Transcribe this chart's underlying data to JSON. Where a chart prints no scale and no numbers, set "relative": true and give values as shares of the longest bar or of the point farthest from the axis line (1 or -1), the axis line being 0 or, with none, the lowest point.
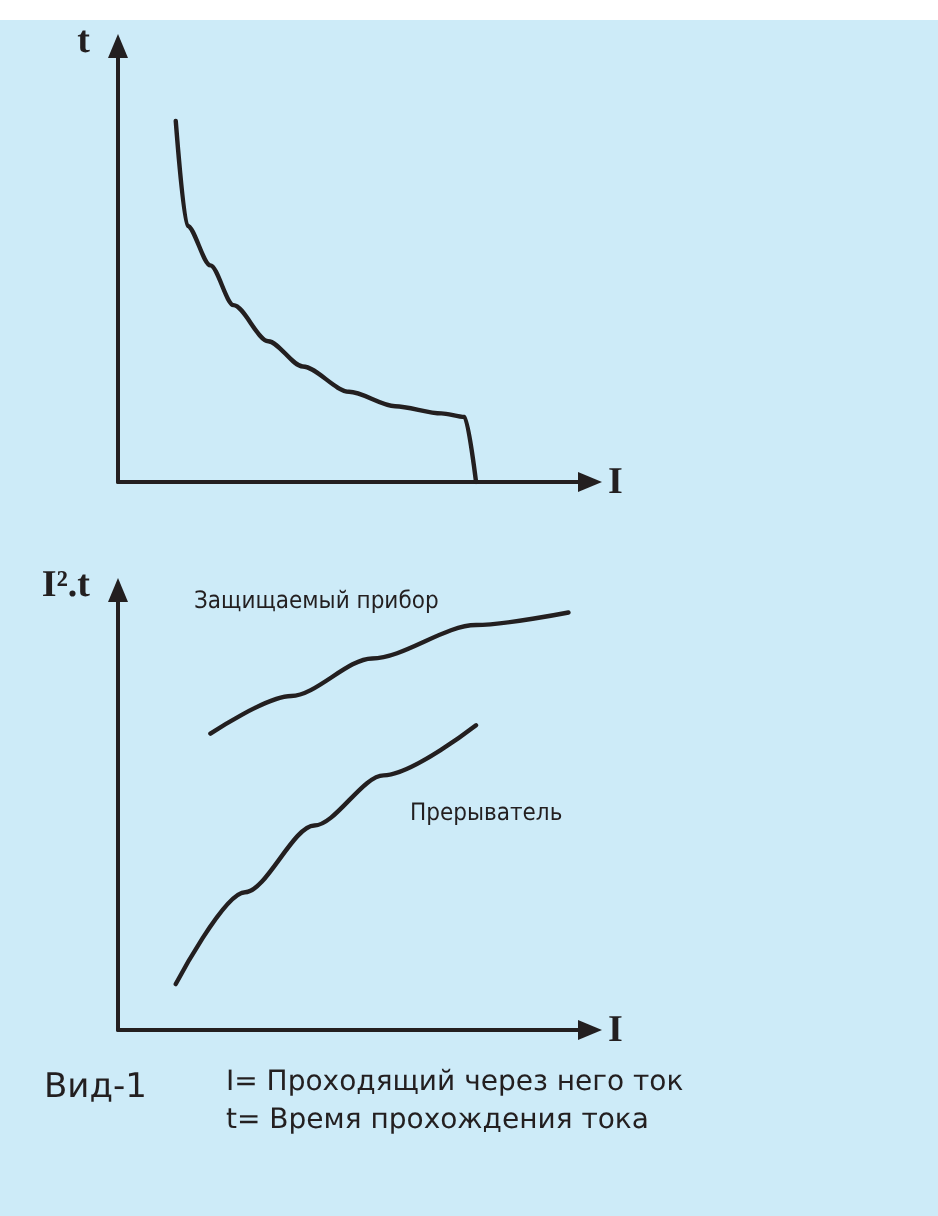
{
  "chart_data": [
    {
      "type": "line",
      "relative": true,
      "ylabel": "t",
      "xlabel": "I",
      "legend": false,
      "grid": false,
      "marker": "none",
      "line_style": "solid",
      "categories": [
        null,
        null,
        null,
        null,
        null,
        null,
        null,
        null,
        null,
        null,
        null,
        null,
        null,
        null,
        null,
        null,
        null,
        null,
        null,
        null,
        null,
        null,
        null,
        null,
        null,
        null,
        null,
        null,
        null,
        null,
        null,
        null,
        null,
        null,
        null,
        null,
        null,
        null,
        null,
        null,
        null
      ],
      "series": [
        {
          "color": "#231f20",
          "values": [
            null,
            null,
            null,
            null,
            null,
            1.0,
            0.71,
            null,
            0.6,
            null,
            0.49,
            null,
            null,
            0.39,
            null,
            null,
            0.32,
            null,
            null,
            null,
            0.25,
            null,
            null,
            null,
            0.21,
            null,
            null,
            null,
            0.19,
            null,
            0.18,
            0,
            null,
            null,
            null,
            null,
            null,
            null,
            null,
            null,
            null
          ]
        }
      ]
    },
    {
      "type": "line",
      "relative": true,
      "ylabel": "I².t",
      "xlabel": "I",
      "legend": false,
      "grid": false,
      "marker": "none",
      "line_style": "solid",
      "annotations": [
        "Вид-1",
        "I= Проходящий через него ток",
        "t= Время прохождения тока"
      ],
      "categories": [
        null,
        null,
        null,
        null,
        null,
        null,
        null,
        null,
        null,
        null,
        null,
        null,
        null,
        null,
        null,
        null,
        null,
        null,
        null,
        null,
        null,
        null,
        null,
        null,
        null,
        null,
        null,
        null,
        null,
        null,
        null,
        null,
        null,
        null,
        null,
        null,
        null,
        null,
        null,
        null,
        null
      ],
      "series": [
        {
          "name": "Защищаемый прибор",
          "color": "#231f20",
          "values": [
            null,
            null,
            null,
            null,
            null,
            null,
            null,
            null,
            0.71,
            null,
            null,
            null,
            null,
            null,
            null,
            0.8,
            null,
            null,
            null,
            null,
            null,
            null,
            0.89,
            null,
            null,
            null,
            null,
            null,
            null,
            null,
            null,
            0.97,
            null,
            null,
            null,
            null,
            null,
            null,
            null,
            1.0,
            null
          ]
        },
        {
          "name": "Прерыватель",
          "color": "#231f20",
          "values": [
            null,
            null,
            null,
            null,
            null,
            0.11,
            null,
            null,
            null,
            null,
            null,
            0.33,
            null,
            null,
            null,
            null,
            null,
            0.49,
            null,
            null,
            null,
            null,
            null,
            0.61,
            null,
            null,
            null,
            null,
            null,
            null,
            null,
            0.73,
            null,
            null,
            null,
            null,
            null,
            null,
            null,
            null,
            null
          ]
        }
      ]
    }
  ]
}
